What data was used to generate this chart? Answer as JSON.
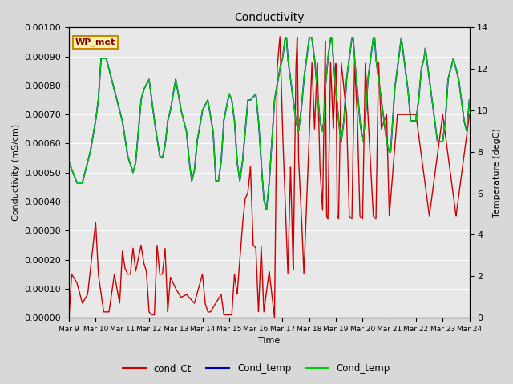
{
  "title": "Conductivity",
  "xlabel": "Time",
  "ylabel_left": "Conductivity (mS/cm)",
  "ylabel_right": "Temperature (degC)",
  "annotation": "WP_met",
  "ylim_left": [
    0,
    0.001
  ],
  "ylim_right": [
    0,
    14
  ],
  "bg_color": "#d8d8d8",
  "plot_bg_color": "#e8e8e8",
  "grid_color": "#ffffff",
  "figsize": [
    6.4,
    4.8
  ],
  "dpi": 100,
  "legend_colors": [
    "#cc0000",
    "#0000bb",
    "#00cc00"
  ],
  "legend_labels": [
    "cond_Ct",
    "Cond_temp",
    "Cond_temp"
  ],
  "xtick_labels": [
    "Mar 9",
    "Mar 10",
    "Mar 11",
    "Mar 12",
    "Mar 13",
    "Mar 14",
    "Mar 15",
    "Mar 16",
    "Mar 17",
    "Mar 18",
    "Mar 19",
    "Mar 20",
    "Mar 21",
    "Mar 22",
    "Mar 23",
    "Mar 24"
  ],
  "yticks_left": [
    0.0,
    0.0001,
    0.0002,
    0.0003,
    0.0004,
    0.0005,
    0.0006,
    0.0007,
    0.0008,
    0.0009,
    0.001
  ],
  "yticks_right": [
    0,
    2,
    4,
    6,
    8,
    10,
    12,
    14
  ]
}
